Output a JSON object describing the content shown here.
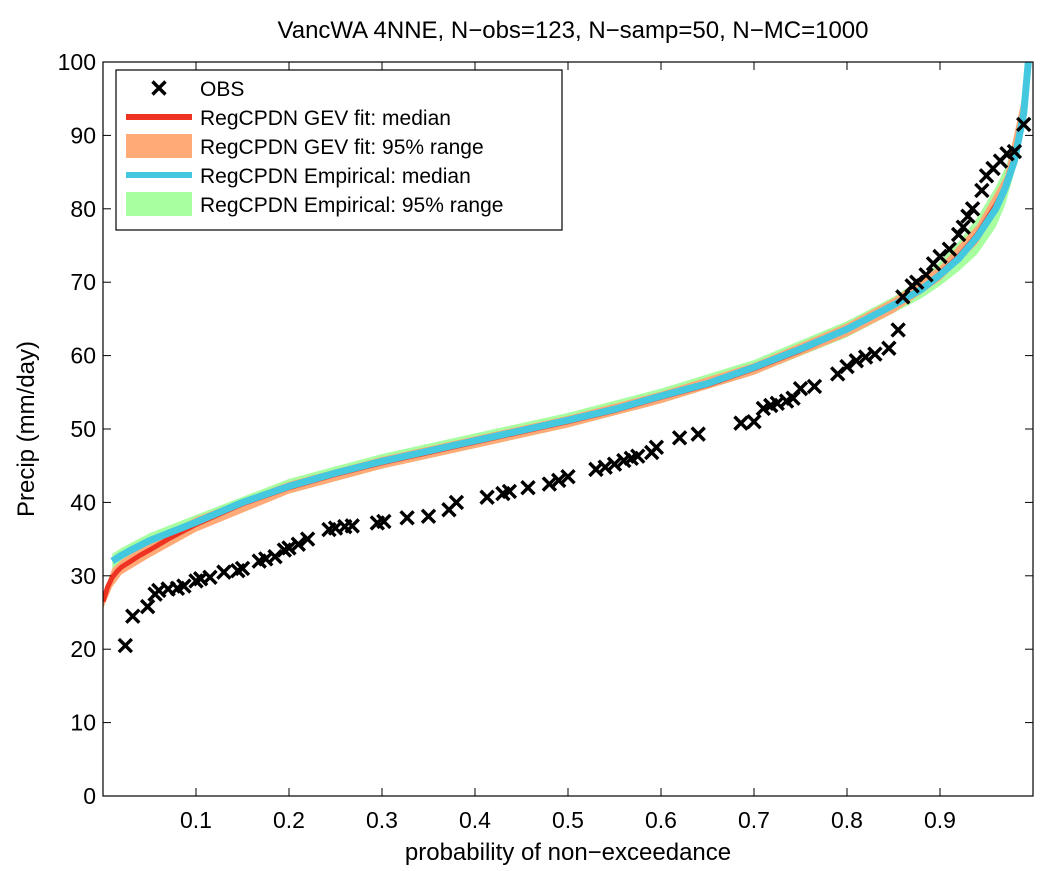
{
  "chart_data": {
    "type": "line",
    "title": "VancWA 4NNE, N−obs=123, N−samp=50, N−MC=1000",
    "xlabel": "probability of non−exceedance",
    "ylabel": "Precip (mm/day)",
    "xlim": [
      0,
      1
    ],
    "ylim": [
      0,
      100
    ],
    "xticks": [
      0.1,
      0.2,
      0.3,
      0.4,
      0.5,
      0.6,
      0.7,
      0.8,
      0.9
    ],
    "xtick_labels": [
      "0.1",
      "0.2",
      "0.3",
      "0.4",
      "0.5",
      "0.6",
      "0.7",
      "0.8",
      "0.9"
    ],
    "yticks": [
      0,
      10,
      20,
      30,
      40,
      50,
      60,
      70,
      80,
      90,
      100
    ],
    "ytick_labels": [
      "0",
      "10",
      "20",
      "30",
      "40",
      "50",
      "60",
      "70",
      "80",
      "90",
      "100"
    ],
    "grid": false,
    "legend_position": "top-left",
    "colors": {
      "obs": "#000000",
      "gev_median": "#ee3322",
      "gev_range": "#ffaa77",
      "emp_median": "#44c8e0",
      "emp_range": "#a8ffa0"
    },
    "series": [
      {
        "name": "OBS",
        "style": "marker-x",
        "x": [
          0.024,
          0.032,
          0.048,
          0.056,
          0.06,
          0.07,
          0.08,
          0.087,
          0.1,
          0.105,
          0.115,
          0.13,
          0.145,
          0.15,
          0.168,
          0.175,
          0.185,
          0.195,
          0.2,
          0.21,
          0.22,
          0.243,
          0.25,
          0.26,
          0.268,
          0.295,
          0.302,
          0.327,
          0.35,
          0.372,
          0.38,
          0.413,
          0.43,
          0.437,
          0.457,
          0.48,
          0.49,
          0.5,
          0.53,
          0.54,
          0.55,
          0.56,
          0.568,
          0.575,
          0.59,
          0.595,
          0.62,
          0.64,
          0.686,
          0.7,
          0.71,
          0.718,
          0.725,
          0.735,
          0.742,
          0.75,
          0.765,
          0.79,
          0.8,
          0.81,
          0.82,
          0.83,
          0.845,
          0.855,
          0.86,
          0.87,
          0.875,
          0.885,
          0.893,
          0.9,
          0.91,
          0.92,
          0.925,
          0.93,
          0.935,
          0.945,
          0.95,
          0.957,
          0.965,
          0.972,
          0.98,
          0.99
        ],
        "values": [
          20.5,
          24.5,
          25.8,
          27.5,
          28,
          28.2,
          28.3,
          28.6,
          29.3,
          29.6,
          29.8,
          30.5,
          30.7,
          31,
          32,
          32.3,
          32.6,
          33.5,
          33.8,
          34.3,
          35,
          36.3,
          36.5,
          36.7,
          36.8,
          37.2,
          37.4,
          37.9,
          38.1,
          39,
          40,
          40.7,
          41.2,
          41.5,
          42,
          42.5,
          43,
          43.5,
          44.5,
          44.8,
          45.2,
          45.7,
          46,
          46.3,
          46.8,
          47.5,
          48.8,
          49.3,
          50.8,
          51,
          52.8,
          53.2,
          53.5,
          53.8,
          54.2,
          55.5,
          55.8,
          57.5,
          58.5,
          59.3,
          59.8,
          60.2,
          61,
          63.5,
          68,
          69.5,
          70,
          71,
          72.5,
          73.5,
          74.5,
          76.5,
          77.5,
          79,
          80,
          82.5,
          84.5,
          85.5,
          86.5,
          87.5,
          87.8,
          91.5
        ]
      },
      {
        "name": "RegCPDN GEV fit: median",
        "style": "line",
        "x": [
          0.0,
          0.005,
          0.01,
          0.015,
          0.02,
          0.03,
          0.04,
          0.05,
          0.07,
          0.1,
          0.15,
          0.2,
          0.25,
          0.3,
          0.35,
          0.4,
          0.45,
          0.5,
          0.55,
          0.6,
          0.65,
          0.7,
          0.75,
          0.8,
          0.85,
          0.88,
          0.9,
          0.92,
          0.94,
          0.96,
          0.97,
          0.98,
          0.99,
          0.995
        ],
        "values": [
          26.5,
          28.5,
          29.8,
          30.6,
          31.2,
          32,
          32.8,
          33.5,
          35,
          37,
          39.8,
          42,
          43.8,
          45.4,
          46.8,
          48.2,
          49.6,
          51,
          52.5,
          54.3,
          56,
          58.2,
          60.7,
          63.5,
          66.8,
          69,
          71.2,
          73.5,
          76.5,
          80.5,
          83,
          87,
          93.5,
          100
        ]
      },
      {
        "name": "RegCPDN GEV fit: 95% range",
        "style": "band",
        "x": [
          0.0,
          0.01,
          0.02,
          0.05,
          0.1,
          0.2,
          0.3,
          0.4,
          0.5,
          0.6,
          0.7,
          0.8,
          0.85,
          0.9,
          0.94,
          0.97,
          0.99
        ],
        "lower": [
          25.5,
          28.5,
          30.2,
          32.5,
          36,
          41.2,
          44.6,
          47.4,
          50.2,
          53.5,
          57.4,
          62.6,
          65.8,
          70.2,
          75.2,
          81.5,
          91
        ],
        "upper": [
          27.5,
          31,
          32.2,
          34.5,
          38,
          42.8,
          46.2,
          49,
          51.8,
          55.1,
          59,
          64.4,
          67.8,
          72.2,
          77.8,
          84.5,
          96
        ]
      },
      {
        "name": "RegCPDN Empirical: median",
        "style": "line",
        "x": [
          0.01,
          0.02,
          0.03,
          0.05,
          0.07,
          0.1,
          0.15,
          0.2,
          0.25,
          0.3,
          0.35,
          0.4,
          0.45,
          0.5,
          0.55,
          0.6,
          0.65,
          0.7,
          0.75,
          0.8,
          0.85,
          0.88,
          0.9,
          0.92,
          0.94,
          0.96,
          0.97,
          0.98,
          0.99,
          0.995
        ],
        "values": [
          32,
          32.8,
          33.5,
          34.8,
          35.8,
          37.3,
          40,
          42.2,
          44,
          45.6,
          47,
          48.4,
          49.8,
          51.2,
          52.7,
          54.5,
          56.2,
          58.4,
          60.9,
          63.6,
          66.9,
          69,
          71,
          73.2,
          76.2,
          80,
          82.8,
          86.5,
          93,
          100
        ]
      },
      {
        "name": "RegCPDN Empirical: 95% range",
        "style": "band",
        "x": [
          0.01,
          0.02,
          0.05,
          0.1,
          0.2,
          0.3,
          0.4,
          0.5,
          0.6,
          0.7,
          0.8,
          0.85,
          0.88,
          0.9,
          0.92,
          0.94,
          0.96,
          0.97,
          0.98,
          0.99,
          0.995
        ],
        "lower": [
          31,
          31.8,
          33.8,
          36.3,
          41.2,
          44.6,
          47.4,
          50.2,
          53.5,
          57.4,
          62.5,
          65.8,
          67.8,
          69.5,
          71.5,
          73.8,
          77.5,
          80.5,
          85,
          91,
          97
        ],
        "upper": [
          33,
          33.8,
          35.8,
          38.3,
          43.2,
          46.6,
          49.4,
          52.2,
          55.5,
          59.4,
          64.7,
          68,
          70.5,
          72.8,
          75.5,
          78.8,
          83,
          85.5,
          89,
          96,
          100
        ]
      }
    ]
  }
}
